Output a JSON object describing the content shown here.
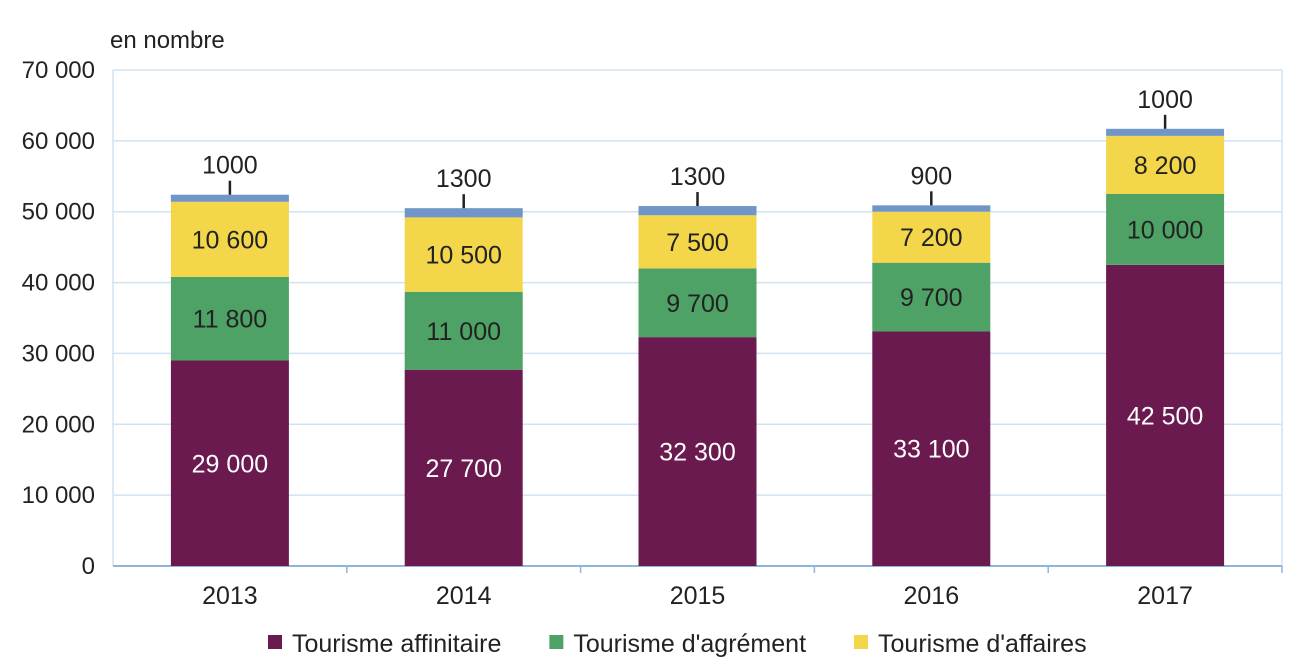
{
  "chart_data": {
    "type": "bar",
    "stacked": true,
    "title": "",
    "unit_label": "en nombre",
    "xlabel": "",
    "ylabel": "",
    "ylim": [
      0,
      70000
    ],
    "yticks": [
      0,
      10000,
      20000,
      30000,
      40000,
      50000,
      60000,
      70000
    ],
    "ytick_labels": [
      "0",
      "10 000",
      "20 000",
      "30 000",
      "40 000",
      "50 000",
      "60 000",
      "70 000"
    ],
    "grid": true,
    "legend_position": "bottom",
    "categories": [
      "2013",
      "2014",
      "2015",
      "2016",
      "2017"
    ],
    "series": [
      {
        "name": "Tourisme affinitaire",
        "color": "#6b1a4f",
        "values": [
          29000,
          27700,
          32300,
          33100,
          42500
        ],
        "labels": [
          "29 000",
          "27 700",
          "32 300",
          "33 100",
          "42 500"
        ],
        "in_legend": true
      },
      {
        "name": "Tourisme d'agrément",
        "color": "#4ea265",
        "values": [
          11800,
          11000,
          9700,
          9700,
          10000
        ],
        "labels": [
          "11 800",
          "11 000",
          "9 700",
          "9 700",
          "10 000"
        ],
        "in_legend": true
      },
      {
        "name": "Tourisme d'affaires",
        "color": "#f3d64a",
        "values": [
          10600,
          10500,
          7500,
          7200,
          8200
        ],
        "labels": [
          "10 600",
          "10 500",
          "7 500",
          "7 200",
          "8 200"
        ],
        "in_legend": true
      },
      {
        "name": "",
        "color": "#7096c8",
        "values": [
          1000,
          1300,
          1300,
          900,
          1000
        ],
        "labels": [
          "1000",
          "1300",
          "1300",
          "900",
          "1000"
        ],
        "in_legend": false
      }
    ]
  }
}
